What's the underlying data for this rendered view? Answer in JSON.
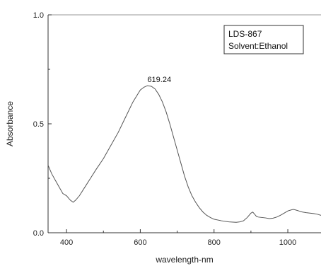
{
  "chart_data": {
    "type": "line",
    "xlabel": "wavelength-nm",
    "ylabel": "Absorbance",
    "xlim": [
      350,
      1090
    ],
    "ylim": [
      0.0,
      1.0
    ],
    "x_ticks": [
      400,
      600,
      800,
      1000
    ],
    "y_ticks": [
      0.0,
      0.5,
      1.0
    ],
    "y_tick_labels": [
      "0.0",
      "0.5",
      "1.0"
    ],
    "grid": false,
    "legend_position": "top-right",
    "legend": [
      "LDS-867",
      "Solvent:Ethanol"
    ],
    "annotations": [
      {
        "text": "619.24",
        "x": 619.24,
        "y": 0.675
      }
    ],
    "series": [
      {
        "x": [
          350,
          360,
          370,
          380,
          390,
          400,
          410,
          418,
          425,
          435,
          450,
          465,
          480,
          500,
          520,
          540,
          560,
          580,
          600,
          610,
          619.24,
          630,
          640,
          650,
          660,
          670,
          680,
          690,
          700,
          710,
          720,
          730,
          740,
          750,
          760,
          770,
          780,
          790,
          800,
          820,
          840,
          860,
          870,
          880,
          890,
          900,
          905,
          910,
          915,
          920,
          930,
          940,
          950,
          960,
          970,
          980,
          990,
          1000,
          1010,
          1015,
          1020,
          1030,
          1040,
          1050,
          1060,
          1070,
          1080,
          1090
        ],
        "values": [
          0.31,
          0.27,
          0.24,
          0.21,
          0.18,
          0.17,
          0.15,
          0.14,
          0.15,
          0.17,
          0.21,
          0.25,
          0.29,
          0.34,
          0.4,
          0.46,
          0.53,
          0.6,
          0.655,
          0.668,
          0.675,
          0.672,
          0.66,
          0.635,
          0.6,
          0.555,
          0.5,
          0.44,
          0.38,
          0.32,
          0.26,
          0.21,
          0.17,
          0.14,
          0.115,
          0.095,
          0.08,
          0.07,
          0.062,
          0.055,
          0.05,
          0.048,
          0.05,
          0.055,
          0.07,
          0.09,
          0.095,
          0.085,
          0.075,
          0.072,
          0.07,
          0.068,
          0.065,
          0.067,
          0.072,
          0.08,
          0.09,
          0.1,
          0.105,
          0.107,
          0.105,
          0.1,
          0.095,
          0.092,
          0.09,
          0.088,
          0.085,
          0.08
        ]
      }
    ]
  },
  "colors": {
    "line": "#555555",
    "axis": "#333333",
    "top_rule": "#9a9a9a"
  }
}
